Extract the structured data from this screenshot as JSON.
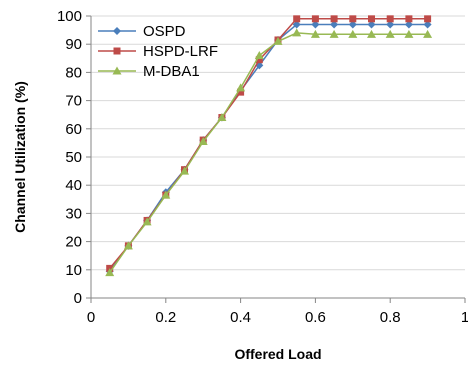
{
  "chart_data": {
    "type": "line",
    "title": "",
    "xlabel": "Offered Load",
    "ylabel": "Channel Utilization (%)",
    "xlim": [
      0,
      1
    ],
    "ylim": [
      0,
      100
    ],
    "x_ticks": [
      0,
      0.2,
      0.4,
      0.6,
      0.8,
      1
    ],
    "x_tick_labels": [
      "0",
      "0.2",
      "0.4",
      "0.6",
      "0.8",
      "1"
    ],
    "y_ticks": [
      0,
      10,
      20,
      30,
      40,
      50,
      60,
      70,
      80,
      90,
      100
    ],
    "y_tick_labels": [
      "0",
      "10",
      "20",
      "30",
      "40",
      "50",
      "60",
      "70",
      "80",
      "90",
      "100"
    ],
    "grid": "horizontal",
    "legend_position": "top-left",
    "x": [
      0.05,
      0.1,
      0.15,
      0.2,
      0.25,
      0.3,
      0.35,
      0.4,
      0.45,
      0.5,
      0.55,
      0.6,
      0.65,
      0.7,
      0.75,
      0.8,
      0.85,
      0.9
    ],
    "series": [
      {
        "name": "OSPD",
        "color": "#4a7ebb",
        "marker": "diamond",
        "values": [
          9.5,
          18.5,
          27.5,
          37.5,
          45.5,
          56,
          64,
          73.5,
          82.5,
          91.5,
          97,
          97,
          97,
          97,
          97,
          97,
          97,
          97
        ]
      },
      {
        "name": "HSPD-LRF",
        "color": "#be4b48",
        "marker": "square",
        "values": [
          10.5,
          18.5,
          27.5,
          36.5,
          45.5,
          56,
          64,
          73,
          84.5,
          91.5,
          99,
          99,
          99,
          99,
          99,
          99,
          99,
          99
        ]
      },
      {
        "name": "M-DBA1",
        "color": "#98b954",
        "marker": "triangle",
        "values": [
          9,
          18.5,
          27,
          36.5,
          45,
          55.5,
          64,
          74.5,
          86,
          91,
          94,
          93.5,
          93.5,
          93.5,
          93.5,
          93.5,
          93.5,
          93.5
        ]
      }
    ]
  }
}
